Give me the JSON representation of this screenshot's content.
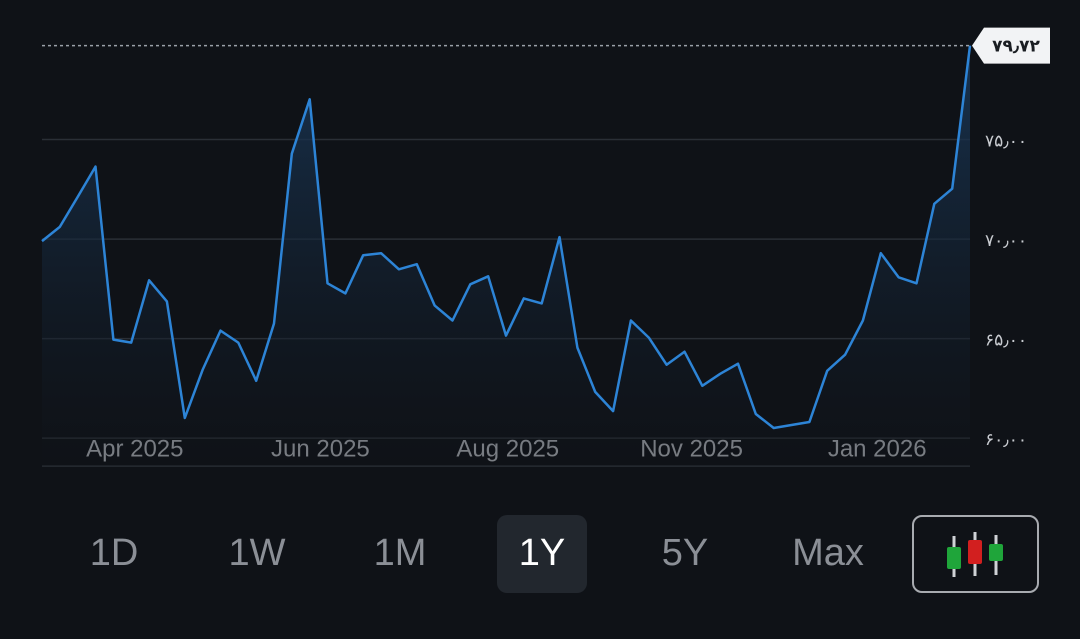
{
  "chart_data": {
    "type": "line",
    "series": [
      {
        "color": "#2d84d6",
        "values": [
          69.9,
          70.61,
          72.12,
          73.64,
          64.95,
          64.8,
          67.93,
          66.87,
          61.01,
          63.43,
          65.4,
          64.8,
          62.88,
          65.76,
          74.29,
          77.02,
          67.78,
          67.27,
          69.19,
          69.29,
          68.48,
          68.74,
          66.67,
          65.91,
          67.73,
          68.13,
          65.15,
          67.02,
          66.77,
          70.1,
          64.55,
          62.32,
          61.36,
          65.91,
          65.05,
          63.69,
          64.34,
          62.63,
          63.23,
          63.74,
          61.21,
          60.51,
          60.66,
          60.81,
          63.38,
          64.19,
          65.91,
          69.29,
          68.08,
          67.78,
          71.77,
          72.53,
          79.72
        ]
      }
    ],
    "ylim": [
      58.6,
      79.9
    ],
    "yticks": [
      {
        "value": 60,
        "label": "۶۰٫۰۰"
      },
      {
        "value": 65,
        "label": "۶۵٫۰۰"
      },
      {
        "value": 70,
        "label": "۷۰٫۰۰"
      },
      {
        "value": 75,
        "label": "۷۵٫۰۰"
      }
    ],
    "xlim": [
      0,
      52
    ],
    "xticks": [
      {
        "value": 5.2,
        "label": "Apr 2025"
      },
      {
        "value": 15.6,
        "label": "Jun 2025"
      },
      {
        "value": 26.1,
        "label": "Aug 2025"
      },
      {
        "value": 36.4,
        "label": "Nov 2025"
      },
      {
        "value": 46.8,
        "label": "Jan 2026"
      }
    ],
    "last_price": {
      "value": 79.72,
      "label": "۷۹٫۷۲"
    },
    "grid": true
  },
  "controls": {
    "ranges": [
      "1D",
      "1W",
      "1M",
      "1Y",
      "5Y",
      "Max"
    ],
    "selected": "1Y"
  }
}
